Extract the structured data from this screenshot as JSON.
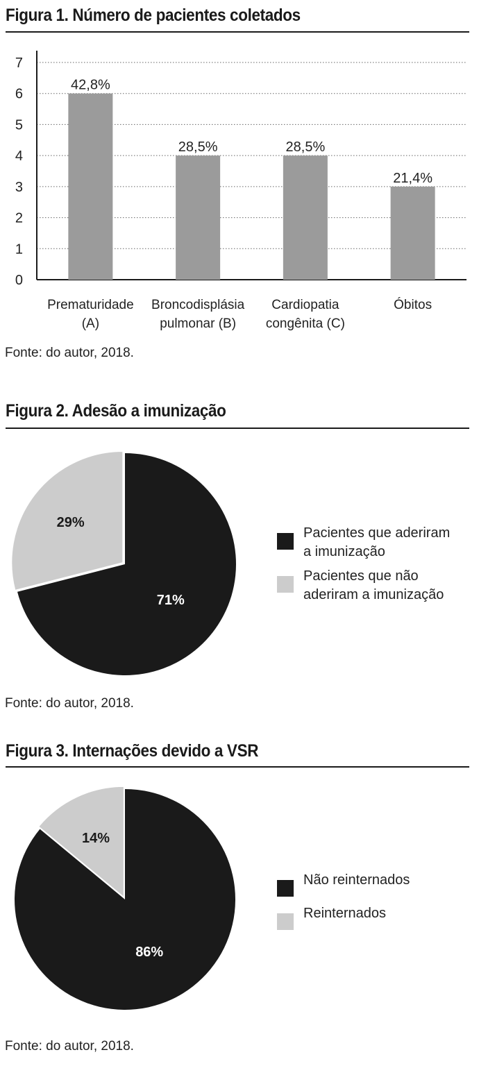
{
  "figure1": {
    "title": "Figura 1. Número de pacientes coletados",
    "source": "Fonte: do autor, 2018."
  },
  "figure2": {
    "title": "Figura 2. Adesão a imunização",
    "source": "Fonte: do autor, 2018."
  },
  "figure3": {
    "title": "Figura 3. Internações devido a VSR",
    "source": "Fonte: do autor, 2018."
  },
  "colors": {
    "bar": "#9b9b9b",
    "dark_slice": "#1a1a1a",
    "light_slice": "#cccccc",
    "grid": "#666666"
  },
  "chart_data": [
    {
      "type": "bar",
      "title": "Figura 1. Número de pacientes coletados",
      "categories": [
        [
          "Prematuridade",
          "(A)"
        ],
        [
          "Broncodisplásia",
          "pulmonar (B)"
        ],
        [
          "Cardiopatia",
          "congênita (C)"
        ],
        [
          "Óbitos"
        ]
      ],
      "values": [
        6,
        4,
        4,
        3
      ],
      "data_labels": [
        "42,8%",
        "28,5%",
        "28,5%",
        "21,4%"
      ],
      "yticks": [
        "0",
        "1",
        "2",
        "3",
        "4",
        "5",
        "6",
        "7"
      ],
      "ylim": [
        0,
        7
      ],
      "grid": "horizontal dotted",
      "xlabel": "",
      "ylabel": ""
    },
    {
      "type": "pie",
      "title": "Figura 2. Adesão a imunização",
      "slices": [
        {
          "label": "Pacientes que aderiram a imunização",
          "legend_lines": [
            "Pacientes que aderiram",
            "a imunização"
          ],
          "value": 71,
          "display": "71%",
          "color": "#1a1a1a",
          "text_color": "#ffffff"
        },
        {
          "label": "Pacientes que não aderiram a imunização",
          "legend_lines": [
            "Pacientes que não",
            "aderiram a imunização"
          ],
          "value": 29,
          "display": "29%",
          "color": "#cccccc",
          "text_color": "#1a1a1a"
        }
      ],
      "legend": "right"
    },
    {
      "type": "pie",
      "title": "Figura 3. Internações devido a VSR",
      "slices": [
        {
          "label": "Não reinternados",
          "legend_lines": [
            "Não reinternados"
          ],
          "value": 86,
          "display": "86%",
          "color": "#1a1a1a",
          "text_color": "#ffffff"
        },
        {
          "label": "Reinternados",
          "legend_lines": [
            "Reinternados"
          ],
          "value": 14,
          "display": "14%",
          "color": "#cccccc",
          "text_color": "#1a1a1a"
        }
      ],
      "legend": "right"
    }
  ]
}
